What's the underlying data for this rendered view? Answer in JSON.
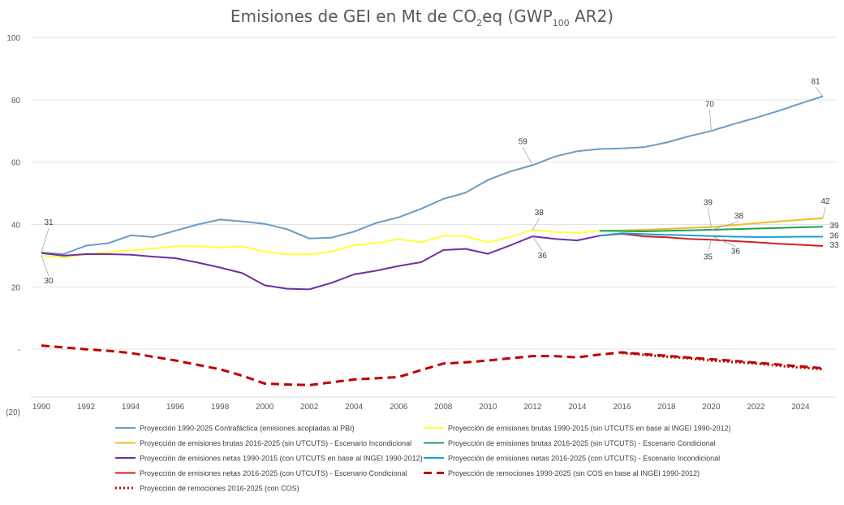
{
  "chart_data": {
    "type": "line",
    "title": {
      "pre": "Emisiones de GEI en Mt de CO",
      "sub1": "2",
      "mid": "eq (GWP",
      "sub2": "100",
      "post": " AR2)"
    },
    "ylim": [
      -20,
      100
    ],
    "y_ticks": [
      {
        "v": 100,
        "label": "100"
      },
      {
        "v": 80,
        "label": "80"
      },
      {
        "v": 60,
        "label": "60"
      },
      {
        "v": 40,
        "label": "40"
      },
      {
        "v": 20,
        "label": "20"
      },
      {
        "v": 0,
        "label": "-"
      },
      {
        "v": -20,
        "label": "(20)"
      }
    ],
    "x_ticks": [
      "1990",
      "1992",
      "1994",
      "1996",
      "1998",
      "2000",
      "2002",
      "2004",
      "2006",
      "2008",
      "2010",
      "2012",
      "2014",
      "2016",
      "2018",
      "2020",
      "2022",
      "2024"
    ],
    "grid": true,
    "legend_position": "bottom",
    "series": [
      {
        "id": "contrafactica",
        "name": "Proyección 1990-2025 Contrafáctica (emisiones acopladas al PBI)",
        "color": "#6c9bc6",
        "style": "solid",
        "x": [
          1990,
          1991,
          1992,
          1993,
          1994,
          1995,
          1996,
          1997,
          1998,
          1999,
          2000,
          2001,
          2002,
          2003,
          2004,
          2005,
          2006,
          2007,
          2008,
          2009,
          2010,
          2011,
          2012,
          2013,
          2014,
          2015,
          2016,
          2017,
          2018,
          2019,
          2020,
          2021,
          2022,
          2023,
          2024,
          2025
        ],
        "y": [
          31,
          30.5,
          33.2,
          34,
          36.5,
          36,
          38,
          40,
          41.6,
          41,
          40.2,
          38.5,
          35.5,
          35.8,
          37.7,
          40.5,
          42.3,
          45,
          48.2,
          50.2,
          54.3,
          57,
          59,
          61.8,
          63.5,
          64.2,
          64.4,
          64.8,
          66.3,
          68.3,
          70,
          72.2,
          74.2,
          76.4,
          78.8,
          81.1
        ]
      },
      {
        "id": "brutas_hist",
        "name": "Proyección de emisiones brutas 1990-2015 (sin UTCUTS en base al INGEI 1990-2012)",
        "color": "#ffff3a",
        "style": "solid",
        "x": [
          1990,
          1991,
          1992,
          1993,
          1994,
          1995,
          1996,
          1997,
          1998,
          1999,
          2000,
          2001,
          2002,
          2003,
          2004,
          2005,
          2006,
          2007,
          2008,
          2009,
          2010,
          2011,
          2012,
          2013,
          2014,
          2015
        ],
        "y": [
          30,
          29.5,
          30.4,
          31.2,
          31.7,
          32.3,
          33,
          33,
          32.6,
          33,
          31.3,
          30.4,
          30.4,
          31.3,
          33.3,
          34.1,
          35.3,
          34.3,
          36.4,
          36.2,
          34.3,
          36,
          38.3,
          37.6,
          37.3,
          38
        ]
      },
      {
        "id": "brutas_incond",
        "name": "Proyección de emisiones brutas 2016-2025 (sin UTCUTS) - Escenario Incondicional",
        "color": "#f2b92b",
        "style": "solid",
        "x": [
          2015,
          2016,
          2017,
          2018,
          2019,
          2020,
          2021,
          2022,
          2023,
          2024,
          2025
        ],
        "y": [
          38,
          38.1,
          38.3,
          38.6,
          38.9,
          39.2,
          39.8,
          40.4,
          41,
          41.5,
          42
        ]
      },
      {
        "id": "brutas_cond",
        "name": "Proyección de emisiones brutas 2016-2025 (sin UTCUTS) - Escenario Condicional",
        "color": "#1aa454",
        "style": "solid",
        "x": [
          2015,
          2016,
          2017,
          2018,
          2019,
          2020,
          2021,
          2022,
          2023,
          2024,
          2025
        ],
        "y": [
          38,
          37.9,
          37.8,
          38,
          38.1,
          38.3,
          38.5,
          38.7,
          38.9,
          39.1,
          39.3
        ]
      },
      {
        "id": "netas_hist",
        "name": "Proyección de emisiones netas 1990-2015 (con UTCUTS en base al INGEI 1990-2012)",
        "color": "#7030a0",
        "style": "solid",
        "x": [
          1990,
          1991,
          1992,
          1993,
          1994,
          1995,
          1996,
          1997,
          1998,
          1999,
          2000,
          2001,
          2002,
          2003,
          2004,
          2005,
          2006,
          2007,
          2008,
          2009,
          2010,
          2011,
          2012,
          2013,
          2014,
          2015
        ],
        "y": [
          30.8,
          30,
          30.5,
          30.5,
          30.3,
          29.7,
          29.2,
          27.8,
          26.2,
          24.4,
          20.5,
          19.4,
          19.2,
          21.3,
          24,
          25.2,
          26.7,
          27.9,
          31.8,
          32.2,
          30.6,
          33.3,
          36.2,
          35.4,
          34.9,
          36.4
        ]
      },
      {
        "id": "netas_incond",
        "name": "Proyección de emisiones netas 2016-2025 (con UTCUTS) - Escenario Incondicional",
        "color": "#17a2d8",
        "style": "solid",
        "x": [
          2015,
          2016,
          2017,
          2018,
          2019,
          2020,
          2021,
          2022,
          2023,
          2024,
          2025
        ],
        "y": [
          36.4,
          37.2,
          36.9,
          36.7,
          36.5,
          36.3,
          36.1,
          36,
          36,
          36.1,
          36.1
        ]
      },
      {
        "id": "netas_cond",
        "name": "Proyección de emisiones netas 2016-2025 (con UTCUTS) - Escenario Condicional",
        "color": "#d42020",
        "style": "solid",
        "x": [
          2015,
          2016,
          2017,
          2018,
          2019,
          2020,
          2021,
          2022,
          2023,
          2024,
          2025
        ],
        "y": [
          36.4,
          37,
          36.2,
          35.9,
          35.4,
          35.1,
          34.7,
          34.3,
          33.8,
          33.5,
          33.1
        ]
      },
      {
        "id": "remociones_hist",
        "name": "Proyección de remociones 1990-2025 (sin COS en base al INGEI 1990-2012)",
        "color": "#c00000",
        "style": "dashed",
        "x": [
          1990,
          1991,
          1992,
          1993,
          1994,
          1995,
          1996,
          1997,
          1998,
          1999,
          2000,
          2001,
          2002,
          2003,
          2004,
          2005,
          2006,
          2007,
          2008,
          2009,
          2010,
          2011,
          2012,
          2013,
          2014,
          2015,
          2016,
          2017,
          2018,
          2019,
          2020,
          2021,
          2022,
          2023,
          2024,
          2025
        ],
        "y": [
          1.2,
          0.6,
          0,
          -0.5,
          -1.2,
          -2.4,
          -3.6,
          -5,
          -6.4,
          -8.5,
          -11,
          -11.3,
          -11.5,
          -10.6,
          -9.7,
          -9.3,
          -8.9,
          -6.7,
          -4.6,
          -4.2,
          -3.6,
          -2.9,
          -2.2,
          -2.2,
          -2.6,
          -1.7,
          -1,
          -1.6,
          -2.1,
          -2.7,
          -3.2,
          -3.7,
          -4.3,
          -4.9,
          -5.5,
          -6.1
        ]
      },
      {
        "id": "remociones_cos",
        "name": "Proyección de remociones 2016-2025 (con COS)",
        "color": "#c00000",
        "style": "dotted",
        "x": [
          2016,
          2017,
          2018,
          2019,
          2020,
          2021,
          2022,
          2023,
          2024,
          2025
        ],
        "y": [
          -1.2,
          -1.8,
          -2.4,
          -2.9,
          -3.6,
          -4.1,
          -4.6,
          -5.3,
          -5.9,
          -6.4
        ]
      }
    ],
    "annotations": [
      {
        "x": 1990,
        "y": 31,
        "text": "31",
        "dx": 9,
        "dy": -34,
        "leader": true
      },
      {
        "x": 1990,
        "y": 30,
        "text": "30",
        "dx": 9,
        "dy": 34,
        "leader": true
      },
      {
        "x": 2012,
        "y": 59,
        "text": "59",
        "dx": -12,
        "dy": -26,
        "leader": true
      },
      {
        "x": 2012,
        "y": 38.3,
        "text": "38",
        "dx": 8,
        "dy": -18,
        "leader": true
      },
      {
        "x": 2012,
        "y": 36.2,
        "text": "36",
        "dx": 12,
        "dy": 27,
        "leader": true
      },
      {
        "x": 2020,
        "y": 70,
        "text": "70",
        "dx": -2,
        "dy": -30,
        "leader": true
      },
      {
        "x": 2020,
        "y": 39.2,
        "text": "39",
        "dx": -4,
        "dy": -27,
        "leader": true
      },
      {
        "x": 2020,
        "y": 38.3,
        "text": "38",
        "dx": 34,
        "dy": -14,
        "leader": true
      },
      {
        "x": 2020,
        "y": 36.3,
        "text": "36",
        "dx": 30,
        "dy": 22,
        "leader": true
      },
      {
        "x": 2020,
        "y": 35.1,
        "text": "35",
        "dx": -4,
        "dy": 24,
        "leader": true
      },
      {
        "x": 2025,
        "y": 81.1,
        "text": "81",
        "dx": -9,
        "dy": -15,
        "leader": true
      },
      {
        "x": 2025,
        "y": 42,
        "text": "42",
        "dx": 3,
        "dy": -18,
        "leader": true
      },
      {
        "x": 2025,
        "y": 39.3,
        "text": "39",
        "dx": 14,
        "dy": 2,
        "leader": false
      },
      {
        "x": 2025,
        "y": 36.1,
        "text": "36",
        "dx": 14,
        "dy": 2,
        "leader": false
      },
      {
        "x": 2025,
        "y": 33.1,
        "text": "33",
        "dx": 14,
        "dy": 2,
        "leader": false
      }
    ]
  }
}
